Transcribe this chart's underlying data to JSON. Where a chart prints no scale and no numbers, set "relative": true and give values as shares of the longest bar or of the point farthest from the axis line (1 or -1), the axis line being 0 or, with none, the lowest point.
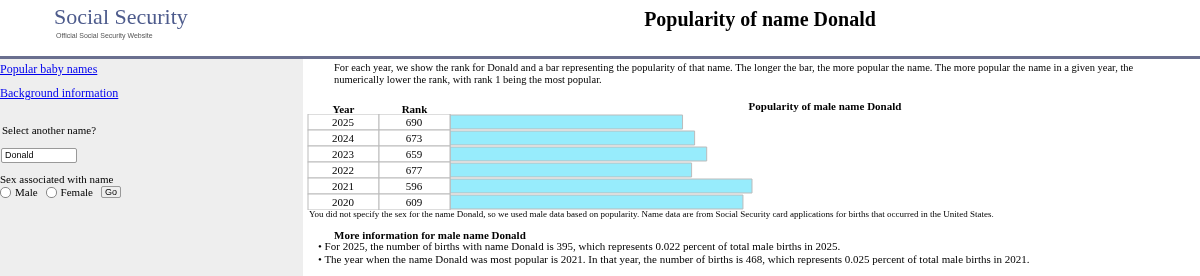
{
  "chart_data": {
    "type": "bar",
    "orientation": "horizontal",
    "relative": true,
    "title": "Popularity of name Donald",
    "subtitle": "Popularity of male name Donald",
    "categories": [
      "2025",
      "2024",
      "2023",
      "2022",
      "2021",
      "2020"
    ],
    "values": [
      0.77,
      0.81,
      0.85,
      0.8,
      1,
      0.97
    ],
    "color": "#97ecfc",
    "annotations": [
      "Social Security",
      "Official Social Security Website",
      "Popular baby names",
      "Background information",
      "Select another name?",
      "Donald",
      "Sex associated with name",
      "Male",
      "Female",
      "Go",
      "For each year, we show the rank for Donald and a bar representing the popularity of that name. The longer the bar, the more popular the name. The more popular the name in a given year, the numerically lower the rank, with rank 1 being the most popular.",
      "Year",
      "Rank",
      "You did not specify the sex for the name Donald, so we used male data based on popularity. Name data are from Social Security card applications for births that occurred in the United States.",
      "More information for male name Donald",
      "• For 2025, the number of births with name Donald is 395, which represents 0.022 percent of total male births in 2025.",
      "• The year when the name Donald was most popular is 2021. In that year, the number of births is 468, which represents 0.025 percent of total male births in 2021.",
      "690",
      "673",
      "659",
      "677",
      "596",
      "609"
    ]
  }
}
